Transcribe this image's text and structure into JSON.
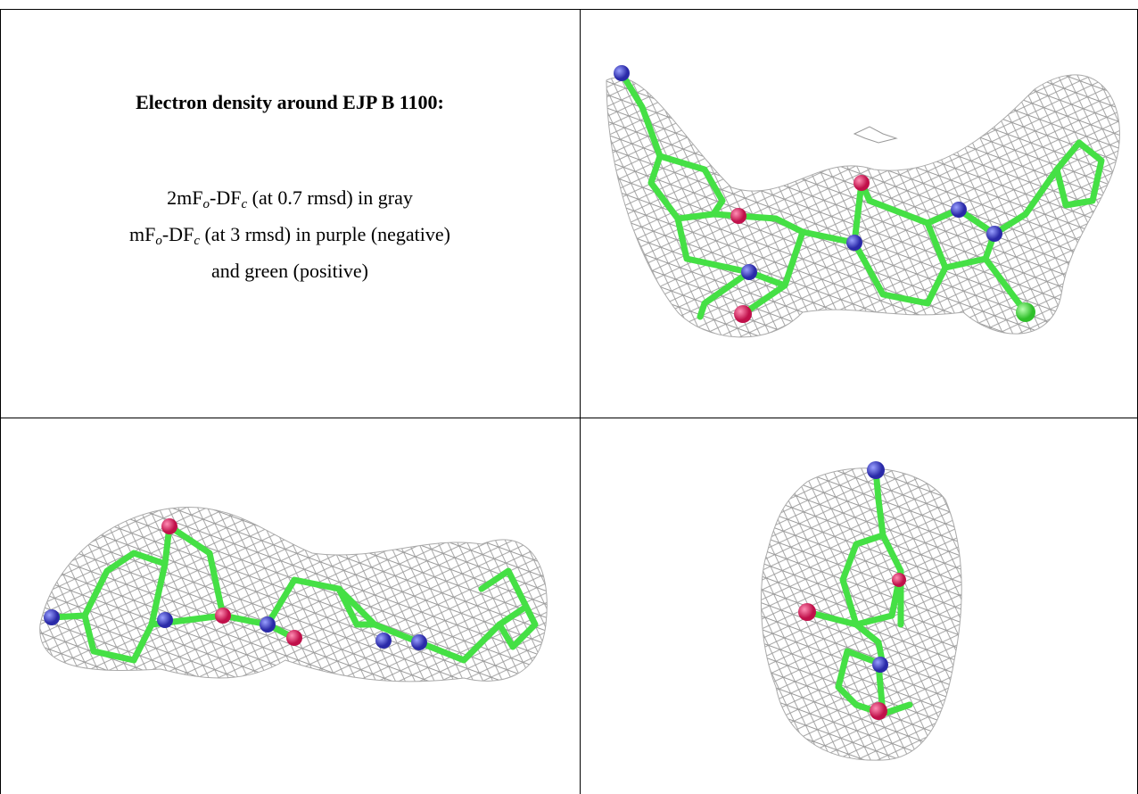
{
  "title": "Electron density around EJP B 1100:",
  "legend": [
    [
      "2mF",
      {
        "sub": "o"
      },
      "-DF",
      {
        "sub": "c"
      },
      " (at 0.7 rmsd) in gray"
    ],
    [
      "mF",
      {
        "sub": "o"
      },
      "-DF",
      {
        "sub": "c"
      },
      " (at 3 rmsd) in purple (negative)"
    ],
    [
      "and green (positive)"
    ]
  ]
}
